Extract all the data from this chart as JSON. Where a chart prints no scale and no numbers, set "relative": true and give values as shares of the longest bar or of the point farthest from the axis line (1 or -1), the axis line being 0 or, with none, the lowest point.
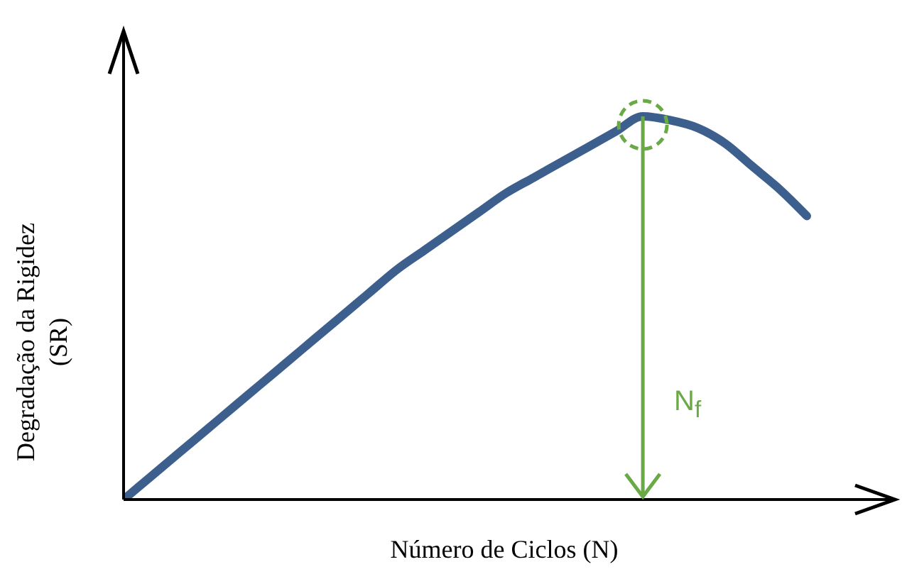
{
  "chart_data": {
    "type": "line",
    "relative": true,
    "xlabel": "Número de Ciclos (N)",
    "ylabel": "Degradação da Rigidez (SR)",
    "categories": [
      null,
      null,
      null,
      null,
      null,
      null,
      null,
      null,
      null,
      null,
      null,
      null,
      null,
      null,
      null,
      null,
      null,
      null,
      null,
      null,
      null,
      null,
      null,
      null,
      null,
      null
    ],
    "series": [
      {
        "color": "#3d5f8e",
        "values": [
          0,
          0.06,
          0.12,
          0.18,
          0.24,
          0.3,
          0.36,
          0.42,
          0.48,
          0.54,
          0.6,
          0.65,
          0.7,
          0.75,
          0.8,
          0.84,
          0.88,
          0.92,
          0.96,
          1,
          0.99,
          0.97,
          0.93,
          0.87,
          0.81,
          0.74
        ]
      }
    ],
    "annotations": [
      "N$_{f}$"
    ],
    "grid": false,
    "marker": "none",
    "line_style": "solid"
  }
}
